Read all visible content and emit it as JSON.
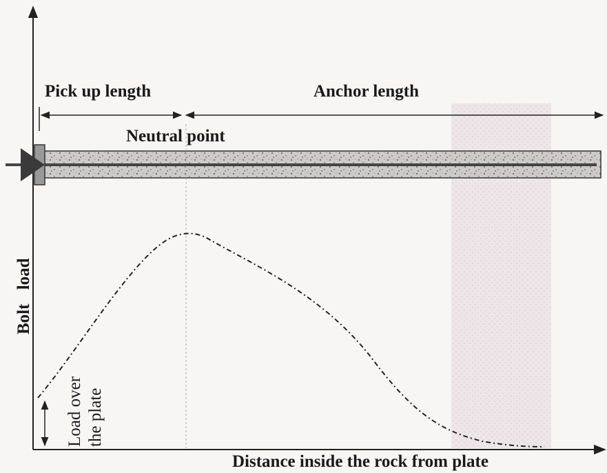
{
  "diagram": {
    "top_labels": {
      "pick_up_length": "Pick up length",
      "anchor_length": "Anchor length"
    },
    "neutral_point": "Neutral point",
    "y_axis_label": "Bolt load",
    "load_over_plate": [
      "Load over",
      "the plate"
    ],
    "x_axis_label": "Distance inside the rock from plate"
  }
}
